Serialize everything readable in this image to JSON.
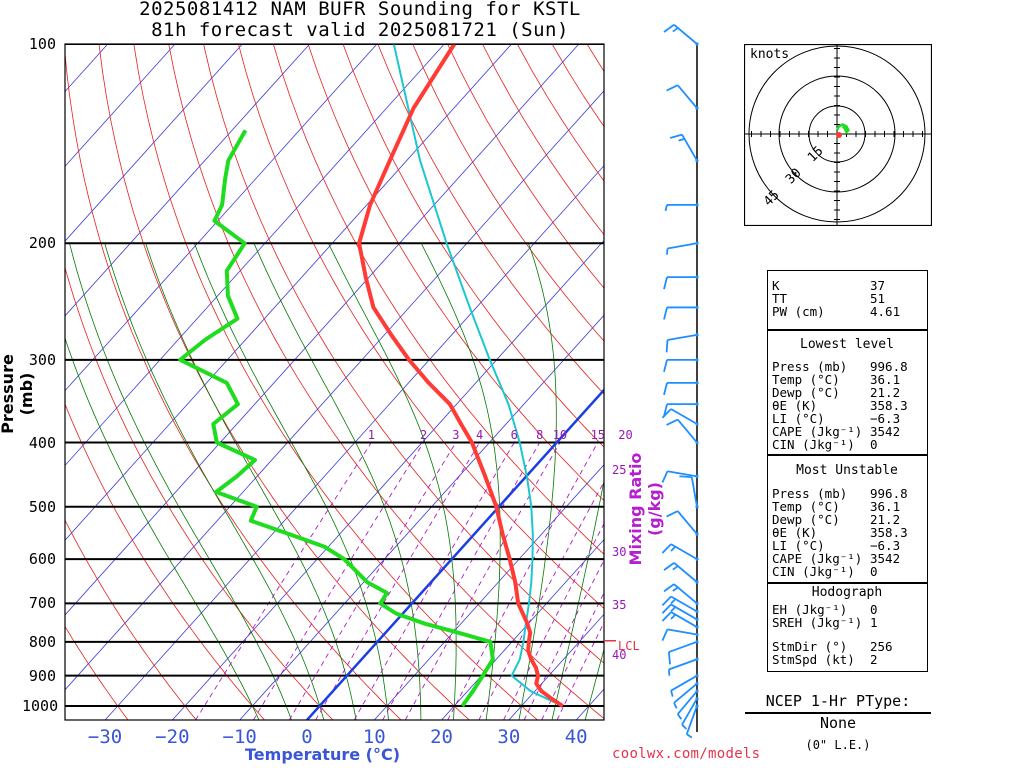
{
  "header": {
    "title_line1": "2025081412 NAM BUFR Sounding for KSTL",
    "title_line2": "81h forecast valid 2025081721 (Sun)"
  },
  "colors": {
    "temperature": "#ff3b36",
    "dewpoint": "#1fdc1f",
    "parcel": "#1cc7d0",
    "isotherm": "#3a3ad8",
    "dry_adiabat": "#e62020",
    "moist_adiabat": "#007a00",
    "mixing_ratio": "#b01ac8",
    "wind": "#1e8fff",
    "freezing_line": "#1b3fe3"
  },
  "chart_data": {
    "type": "skew-t",
    "ylabel": "Pressure (mb)",
    "xlabel": "Temperature (°C)",
    "pressure_ticks": [
      100,
      200,
      300,
      400,
      500,
      600,
      700,
      800,
      900,
      1000
    ],
    "temperature_ticks": [
      -30,
      -20,
      -10,
      0,
      10,
      20,
      30,
      40
    ],
    "temperature_tick_labels": [
      "−30",
      "−20",
      "−10",
      "0",
      "10",
      "20",
      "30",
      "40"
    ],
    "pressure_range": [
      100,
      1050
    ],
    "temperature_range_at_surface": [
      -38,
      41
    ],
    "mixing_ratio_label": "Mixing Ratio (g/kg)",
    "mixing_ratio_lines": [
      1,
      2,
      3,
      4,
      6,
      8,
      10,
      15,
      20,
      25,
      30,
      35,
      40
    ],
    "mixing_ratio_top_labels": [
      "1",
      "2",
      "3",
      "4",
      "6",
      "8",
      "10",
      "15",
      "20"
    ],
    "mixing_ratio_side_labels": [
      "25",
      "30",
      "35",
      "40"
    ],
    "lcl_label": "LCL",
    "lcl_pressure": 797,
    "series": [
      {
        "name": "Temperature",
        "points": [
          [
            1000,
            36.1
          ],
          [
            975,
            33.5
          ],
          [
            950,
            31.0
          ],
          [
            925,
            29.2
          ],
          [
            900,
            28.4
          ],
          [
            875,
            27.0
          ],
          [
            850,
            25.2
          ],
          [
            825,
            23.6
          ],
          [
            800,
            22.5
          ],
          [
            775,
            21.5
          ],
          [
            750,
            19.8
          ],
          [
            700,
            15.8
          ],
          [
            650,
            12.5
          ],
          [
            600,
            8.6
          ],
          [
            550,
            4.2
          ],
          [
            500,
            -0.4
          ],
          [
            450,
            -6.1
          ],
          [
            400,
            -12.6
          ],
          [
            375,
            -16.7
          ],
          [
            350,
            -21.0
          ],
          [
            325,
            -27.0
          ],
          [
            300,
            -33.0
          ],
          [
            275,
            -39.0
          ],
          [
            250,
            -45.3
          ],
          [
            225,
            -50.5
          ],
          [
            200,
            -56.0
          ],
          [
            175,
            -59.5
          ],
          [
            150,
            -62.5
          ],
          [
            125,
            -66.0
          ],
          [
            100,
            -68.5
          ]
        ]
      },
      {
        "name": "Dewpoint",
        "points": [
          [
            1000,
            21.2
          ],
          [
            950,
            20.8
          ],
          [
            900,
            20.2
          ],
          [
            850,
            19.5
          ],
          [
            800,
            16.8
          ],
          [
            775,
            10.8
          ],
          [
            750,
            4.4
          ],
          [
            725,
            -1.0
          ],
          [
            700,
            -4.7
          ],
          [
            675,
            -5.1
          ],
          [
            650,
            -9.5
          ],
          [
            600,
            -16.0
          ],
          [
            575,
            -20.5
          ],
          [
            550,
            -27.5
          ],
          [
            525,
            -35.0
          ],
          [
            500,
            -36.0
          ],
          [
            475,
            -44.0
          ],
          [
            450,
            -43.0
          ],
          [
            425,
            -42.5
          ],
          [
            400,
            -50.5
          ],
          [
            375,
            -53.5
          ],
          [
            350,
            -52.5
          ],
          [
            325,
            -57.0
          ],
          [
            300,
            -67.0
          ],
          [
            280,
            -66.0
          ],
          [
            260,
            -64.0
          ],
          [
            240,
            -68.5
          ],
          [
            220,
            -72.0
          ],
          [
            200,
            -73.0
          ],
          [
            185,
            -80.5
          ],
          [
            175,
            -81.5
          ],
          [
            160,
            -84.5
          ],
          [
            150,
            -86.5
          ],
          [
            135,
            -88.0
          ]
        ]
      },
      {
        "name": "Parcel",
        "points": [
          [
            1000,
            36.1
          ],
          [
            950,
            29.4
          ],
          [
            900,
            24.5
          ],
          [
            850,
            23.5
          ],
          [
            800,
            21.7
          ],
          [
            750,
            19.6
          ],
          [
            700,
            17.4
          ],
          [
            650,
            14.9
          ],
          [
            600,
            12.0
          ],
          [
            550,
            8.7
          ],
          [
            500,
            4.8
          ],
          [
            450,
            0.1
          ],
          [
            400,
            -5.5
          ],
          [
            350,
            -12.3
          ],
          [
            300,
            -21.0
          ],
          [
            250,
            -31.0
          ],
          [
            200,
            -43.0
          ],
          [
            150,
            -58.0
          ],
          [
            100,
            -77.5
          ]
        ]
      }
    ],
    "wind_barbs": [
      {
        "p": 1000,
        "dir": 200,
        "spd": 5
      },
      {
        "p": 975,
        "dir": 210,
        "spd": 5
      },
      {
        "p": 950,
        "dir": 220,
        "spd": 5
      },
      {
        "p": 925,
        "dir": 230,
        "spd": 5
      },
      {
        "p": 900,
        "dir": 240,
        "spd": 5
      },
      {
        "p": 850,
        "dir": 250,
        "spd": 5
      },
      {
        "p": 800,
        "dir": 250,
        "spd": 10
      },
      {
        "p": 780,
        "dir": 280,
        "spd": 10
      },
      {
        "p": 760,
        "dir": 300,
        "spd": 15
      },
      {
        "p": 740,
        "dir": 300,
        "spd": 15
      },
      {
        "p": 720,
        "dir": 300,
        "spd": 15
      },
      {
        "p": 700,
        "dir": 310,
        "spd": 15
      },
      {
        "p": 650,
        "dir": 310,
        "spd": 15
      },
      {
        "p": 600,
        "dir": 300,
        "spd": 15
      },
      {
        "p": 550,
        "dir": 320,
        "spd": 10
      },
      {
        "p": 500,
        "dir": 350,
        "spd": 10
      },
      {
        "p": 450,
        "dir": 280,
        "spd": 10
      },
      {
        "p": 400,
        "dir": 320,
        "spd": 10
      },
      {
        "p": 375,
        "dir": 300,
        "spd": 10
      },
      {
        "p": 350,
        "dir": 270,
        "spd": 10
      },
      {
        "p": 325,
        "dir": 270,
        "spd": 10
      },
      {
        "p": 300,
        "dir": 270,
        "spd": 10
      },
      {
        "p": 275,
        "dir": 260,
        "spd": 10
      },
      {
        "p": 250,
        "dir": 270,
        "spd": 10
      },
      {
        "p": 225,
        "dir": 270,
        "spd": 10
      },
      {
        "p": 200,
        "dir": 260,
        "spd": 5
      },
      {
        "p": 175,
        "dir": 270,
        "spd": 5
      },
      {
        "p": 150,
        "dir": 330,
        "spd": 15
      },
      {
        "p": 125,
        "dir": 320,
        "spd": 10
      },
      {
        "p": 100,
        "dir": 310,
        "spd": 15
      }
    ]
  },
  "hodograph": {
    "unit_label": "knots",
    "ring_labels": [
      "15",
      "30",
      "45"
    ],
    "trace_uv": [
      [
        0,
        2
      ],
      [
        1,
        4
      ],
      [
        3,
        5
      ],
      [
        5,
        4
      ],
      [
        6,
        2
      ],
      [
        5,
        1
      ],
      [
        4,
        3
      ],
      [
        3,
        4
      ]
    ]
  },
  "indices": {
    "general": [
      {
        "label": "K",
        "value": "37"
      },
      {
        "label": "TT",
        "value": "51"
      },
      {
        "label": "PW (cm)",
        "value": "4.61"
      }
    ],
    "lowest_level_title": "Lowest level",
    "lowest_level": [
      {
        "label": "Press (mb)",
        "value": "996.8"
      },
      {
        "label": "Temp (°C)",
        "value": "36.1"
      },
      {
        "label": "Dewp (°C)",
        "value": "21.2"
      },
      {
        "label": "θE (K)",
        "value": "358.3"
      },
      {
        "label": "LI (°C)",
        "value": "−6.3"
      },
      {
        "label": "CAPE (Jkg⁻¹)",
        "value": "3542"
      },
      {
        "label": "CIN (Jkg⁻¹)",
        "value": "0"
      }
    ],
    "most_unstable_title": "Most Unstable",
    "most_unstable": [
      {
        "label": "Press (mb)",
        "value": "996.8"
      },
      {
        "label": "Temp (°C)",
        "value": "36.1"
      },
      {
        "label": "Dewp (°C)",
        "value": "21.2"
      },
      {
        "label": "θE (K)",
        "value": "358.3"
      },
      {
        "label": "LI (°C)",
        "value": "−6.3"
      },
      {
        "label": "CAPE (Jkg⁻¹)",
        "value": "3542"
      },
      {
        "label": "CIN (Jkg⁻¹)",
        "value": "0"
      }
    ],
    "hodograph_title": "Hodograph",
    "hodograph_rows": [
      {
        "label": "EH (Jkg⁻¹)",
        "value": "0"
      },
      {
        "label": "SREH (Jkg⁻¹)",
        "value": "1"
      }
    ],
    "storm_rows": [
      {
        "label": "StmDir (°)",
        "value": "256"
      },
      {
        "label": "StmSpd (kt)",
        "value": "2"
      }
    ]
  },
  "ptype": {
    "heading": "NCEP 1-Hr PType:",
    "value": "None",
    "sub": "(0\" L.E.)"
  },
  "footer": {
    "site": "coolwx.com/models"
  }
}
